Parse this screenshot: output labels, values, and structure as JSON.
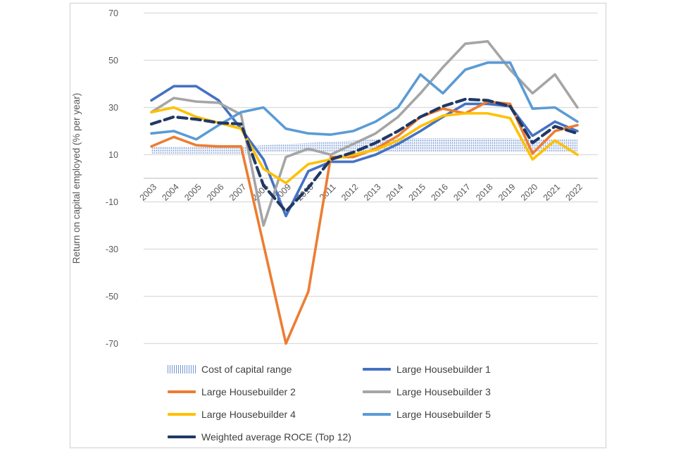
{
  "chart_data": {
    "type": "line",
    "title": "",
    "ylabel": "Return on capital employed (% per year)",
    "xlabel": "",
    "ylim": [
      -78,
      75
    ],
    "grid": true,
    "legend_position": "bottom",
    "y_ticks": [
      70,
      50,
      30,
      10,
      -10,
      -30,
      -50,
      -70
    ],
    "x_labels": [
      "2003",
      "2004",
      "2005",
      "2006",
      "2007",
      "2008",
      "2009",
      "2010",
      "2011",
      "2012",
      "2013",
      "2014",
      "2015",
      "2016",
      "2017",
      "2018",
      "2019",
      "2020",
      "2021",
      "2022"
    ],
    "cost_of_capital_range": {
      "label": "Cost of capital range",
      "color": "#4472C4",
      "bottom": [
        10.5,
        10.5,
        10.5,
        10.5,
        10.5,
        11,
        11,
        11,
        11,
        11,
        11,
        11,
        11,
        11,
        11,
        11,
        11,
        11,
        11,
        11
      ],
      "top": [
        13.5,
        13.5,
        13.5,
        13.5,
        13.5,
        14,
        14.5,
        15,
        15.5,
        16,
        16.5,
        17,
        17,
        17,
        17,
        17,
        17,
        16.5,
        16.5,
        16.5
      ]
    },
    "series": [
      {
        "name": "Large Housebuilder 1",
        "color": "#4472C4",
        "dash": false,
        "values": [
          33,
          39,
          39,
          33,
          21,
          8,
          -16,
          3,
          7,
          7,
          10,
          14.5,
          20,
          26,
          31.5,
          31.5,
          30.5,
          18,
          24,
          20
        ]
      },
      {
        "name": "Large Housebuilder 2",
        "color": "#ED7D31",
        "dash": false,
        "values": [
          13.5,
          17.5,
          14,
          13.5,
          13.5,
          -28,
          -70,
          -48,
          9,
          9,
          12.5,
          18,
          26,
          29.5,
          27.5,
          32.5,
          31.5,
          10.5,
          20,
          22.5
        ]
      },
      {
        "name": "Large Housebuilder 3",
        "color": "#A5A5A5",
        "dash": false,
        "values": [
          28,
          34,
          32.5,
          32,
          27,
          -20,
          9,
          12.5,
          10,
          14.5,
          19,
          26,
          36,
          47,
          57,
          58,
          46,
          36,
          44,
          30
        ]
      },
      {
        "name": "Large Housebuilder 4",
        "color": "#FFC000",
        "dash": false,
        "values": [
          28,
          30,
          26,
          23.5,
          21,
          4,
          -2,
          6,
          8,
          10,
          12,
          16,
          22,
          26.5,
          27.5,
          27.5,
          25.5,
          8,
          16,
          10
        ]
      },
      {
        "name": "Large Housebuilder 5",
        "color": "#5B9BD5",
        "dash": false,
        "values": [
          19,
          20,
          16.5,
          22.5,
          28,
          30,
          21,
          19,
          18.5,
          20,
          24,
          30,
          44,
          36,
          46,
          49,
          49,
          29.5,
          30,
          24
        ]
      },
      {
        "name": "Weighted average ROCE (Top 12)",
        "color": "#203864",
        "dash": true,
        "values": [
          23,
          26,
          25,
          23.5,
          23,
          -3,
          -14,
          -4,
          8,
          11,
          15,
          20,
          26,
          30.5,
          33.5,
          33,
          30.5,
          15,
          22,
          19
        ]
      }
    ]
  },
  "axis": {
    "y_title": "Return on capital employed (%  per year)"
  },
  "legend": {
    "items": [
      {
        "label": "Cost of capital range",
        "swatch": "band",
        "color": "#4472C4"
      },
      {
        "label": "Large Housebuilder 1",
        "swatch": "line",
        "color": "#4472C4"
      },
      {
        "label": "Large Housebuilder 2",
        "swatch": "line",
        "color": "#ED7D31"
      },
      {
        "label": "Large Housebuilder 3",
        "swatch": "line",
        "color": "#A5A5A5"
      },
      {
        "label": "Large Housebuilder 4",
        "swatch": "line",
        "color": "#FFC000"
      },
      {
        "label": "Large Housebuilder 5",
        "swatch": "line",
        "color": "#5B9BD5"
      },
      {
        "label": "Weighted average ROCE (Top 12)",
        "swatch": "dash",
        "color": "#203864"
      }
    ]
  },
  "colors": {
    "grid": "#DBDBDB",
    "zero_axis": "#C6C6C6",
    "tick_text": "#595959",
    "frame_border": "#D9D9D9",
    "background": "#FFFFFF"
  }
}
